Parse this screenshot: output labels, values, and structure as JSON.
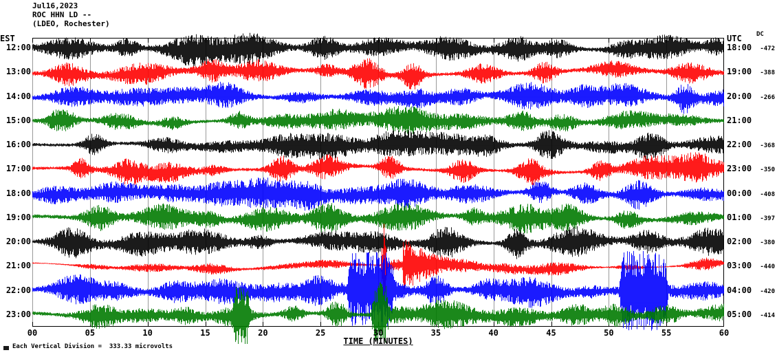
{
  "header": {
    "date": "Jul16,2023",
    "station": "ROC HHN LD --",
    "network": "(LDEO, Rochester)"
  },
  "axes": {
    "left_title": "EST",
    "right_title": "UTC",
    "dc_title": "DC",
    "x_label": "TIME (MINUTES)",
    "x_ticks": [
      "00",
      "05",
      "10",
      "15",
      "20",
      "25",
      "30",
      "35",
      "40",
      "45",
      "50",
      "55",
      "60"
    ]
  },
  "footer": {
    "note": "Each Vertical Division =  333.33 microvolts"
  },
  "colors": {
    "background": "#ffffff",
    "frame": "#000000",
    "grid": "#999999",
    "text": "#000000"
  },
  "chart_data": {
    "type": "line",
    "subtype": "helicorder-seismogram",
    "title": "ROC HHN LD -- (LDEO, Rochester) Jul16,2023",
    "xlabel": "TIME (MINUTES)",
    "x_range_minutes": [
      0,
      60
    ],
    "x_tick_interval_minutes": 5,
    "minutes_per_row": 60,
    "vertical_division_microvolts": 333.33,
    "trace_color_cycle": [
      "#000000",
      "#ff0000",
      "#0000ff",
      "#007a00"
    ],
    "rows": [
      {
        "est": "12:00",
        "utc": "18:00",
        "dc": "-472",
        "color": "#000000"
      },
      {
        "est": "13:00",
        "utc": "19:00",
        "dc": "-388",
        "color": "#ff0000"
      },
      {
        "est": "14:00",
        "utc": "20:00",
        "dc": "-266",
        "color": "#0000ff"
      },
      {
        "est": "15:00",
        "utc": "21:00",
        "dc": "",
        "color": "#007a00"
      },
      {
        "est": "16:00",
        "utc": "22:00",
        "dc": "-368",
        "color": "#000000"
      },
      {
        "est": "17:00",
        "utc": "23:00",
        "dc": "-350",
        "color": "#ff0000"
      },
      {
        "est": "18:00",
        "utc": "00:00",
        "dc": "-408",
        "color": "#0000ff"
      },
      {
        "est": "19:00",
        "utc": "01:00",
        "dc": "-397",
        "color": "#007a00"
      },
      {
        "est": "20:00",
        "utc": "02:00",
        "dc": "-380",
        "color": "#000000"
      },
      {
        "est": "21:00",
        "utc": "03:00",
        "dc": "-440",
        "color": "#ff0000"
      },
      {
        "est": "22:00",
        "utc": "04:00",
        "dc": "-420",
        "color": "#0000ff"
      },
      {
        "est": "23:00",
        "utc": "05:00",
        "dc": "-414",
        "color": "#007a00"
      }
    ],
    "noise_character": "quasi-periodic noise bursts roughly every 4-6 minutes on all channels",
    "notable_events": [
      {
        "row": 9,
        "start_minute": 30.2,
        "end_minute": 30.8,
        "scale": 5.5,
        "decay": false,
        "description": "sharp spike on 21:00 EST trace"
      },
      {
        "row": 9,
        "start_minute": 32.2,
        "end_minute": 40.0,
        "scale": 2.3,
        "decay": true,
        "description": "event with decaying coda on 21:00 EST trace"
      },
      {
        "row": 10,
        "start_minute": 27.2,
        "end_minute": 31.5,
        "scale": 3.2,
        "decay": false,
        "description": "high-amplitude burst on 22:00 EST trace"
      },
      {
        "row": 10,
        "start_minute": 50.8,
        "end_minute": 55.2,
        "scale": 3.4,
        "decay": false,
        "description": "high-amplitude burst on 22:00 EST trace"
      },
      {
        "row": 11,
        "start_minute": 17.2,
        "end_minute": 19.0,
        "scale": 2.6,
        "decay": false,
        "description": "burst on 23:00 EST trace"
      },
      {
        "row": 11,
        "start_minute": 29.3,
        "end_minute": 31.0,
        "scale": 2.8,
        "decay": false,
        "description": "burst on 23:00 EST trace"
      }
    ]
  }
}
